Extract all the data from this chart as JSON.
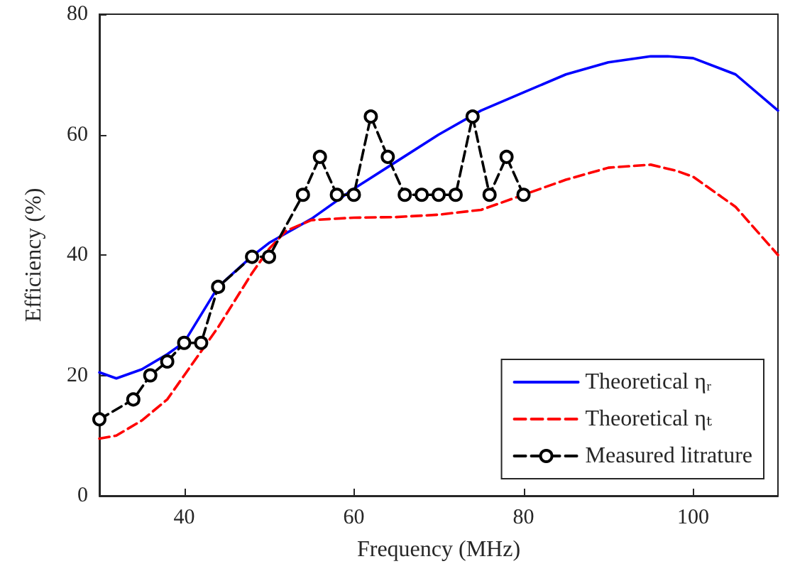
{
  "chart_data": {
    "type": "line",
    "xlabel": "Frequency (MHz)",
    "ylabel": "Efficiency (%)",
    "xlim": [
      30,
      110
    ],
    "xticks": [
      40,
      60,
      80,
      100
    ],
    "ylim": [
      0,
      80
    ],
    "yticks": [
      0,
      20,
      40,
      60,
      80
    ],
    "grid": false,
    "legend": "bottom right",
    "series": [
      {
        "name": "Theoretical ηᵣ",
        "color": "#0000ff",
        "line_style": "solid",
        "marker": "none",
        "x": [
          30,
          32,
          35,
          38,
          40,
          44,
          48,
          50,
          55,
          60,
          65,
          70,
          75,
          80,
          85,
          90,
          95,
          97,
          100,
          105,
          110
        ],
        "values": [
          20.5,
          19.5,
          21,
          23.5,
          25.5,
          34.7,
          39.8,
          42,
          46,
          51,
          55.5,
          60,
          64,
          67,
          70,
          72,
          73,
          73,
          72.7,
          70,
          64
        ]
      },
      {
        "name": "Theoretical ηₜ",
        "color": "#ff0000",
        "line_style": "dashed",
        "marker": "none",
        "x": [
          30,
          32,
          35,
          38,
          40,
          44,
          48,
          50,
          52,
          55,
          60,
          65,
          70,
          75,
          80,
          85,
          90,
          95,
          98,
          100,
          105,
          110
        ],
        "values": [
          9.5,
          10,
          12.5,
          16,
          20,
          28,
          37,
          41,
          44,
          45.8,
          46.2,
          46.3,
          46.7,
          47.5,
          50,
          52.5,
          54.5,
          55,
          54,
          53,
          48,
          40
        ]
      },
      {
        "name": "Measured litrature",
        "color": "#000000",
        "line_style": "dashed",
        "marker": "circle",
        "x": [
          30,
          34,
          36,
          38,
          40,
          42,
          44,
          48,
          50,
          54,
          56,
          58,
          60,
          62,
          64,
          66,
          68,
          70,
          72,
          74,
          76,
          78,
          80
        ],
        "values": [
          12.7,
          16,
          20,
          22.3,
          25.4,
          25.4,
          34.7,
          39.7,
          39.7,
          50,
          56.3,
          50,
          50,
          63,
          56.3,
          50,
          50,
          50,
          50,
          63,
          50,
          56.3,
          50
        ]
      }
    ]
  }
}
